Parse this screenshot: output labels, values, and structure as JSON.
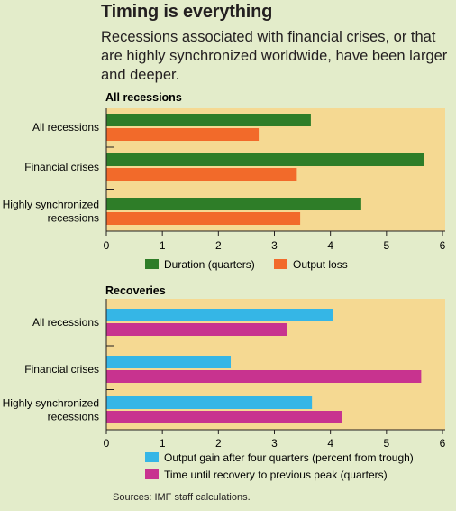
{
  "title": "Timing is everything",
  "subtitle": "Recessions associated with financial crises, or that are highly synchronized worldwide, have been larger and deeper.",
  "source": "Sources: IMF staff calculations.",
  "colors": {
    "background": "#e3ecca",
    "plot": "#f5d992",
    "duration": "#2e7d28",
    "output_loss": "#f26a2a",
    "output_gain": "#35b6e6",
    "time_recovery": "#c8338f"
  },
  "chart_data": [
    {
      "type": "bar",
      "orientation": "horizontal",
      "title": "All recessions",
      "categories": [
        [
          "All recessions"
        ],
        [
          "Financial crises"
        ],
        [
          "Highly synchronized",
          "recessions"
        ]
      ],
      "series": [
        {
          "name": "Duration (quarters)",
          "values": [
            3.65,
            5.67,
            4.55
          ],
          "color": "#2e7d28"
        },
        {
          "name": "Output loss",
          "values": [
            2.72,
            3.4,
            3.46
          ],
          "color": "#f26a2a"
        }
      ],
      "xlim": [
        0,
        6
      ],
      "ticks": [
        "0",
        "1",
        "2",
        "3",
        "4",
        "5",
        "6"
      ],
      "legend": "bottom"
    },
    {
      "type": "bar",
      "orientation": "horizontal",
      "title": "Recoveries",
      "categories": [
        [
          "All recessions"
        ],
        [
          "Financial crises"
        ],
        [
          "Highly synchronized",
          "recessions"
        ]
      ],
      "series": [
        {
          "name": "Output gain after four quarters (percent from trough)",
          "values": [
            4.05,
            2.22,
            3.67
          ],
          "color": "#35b6e6"
        },
        {
          "name": "Time until recovery to previous peak (quarters)",
          "values": [
            3.22,
            5.62,
            4.2
          ],
          "color": "#c8338f"
        }
      ],
      "xlim": [
        0,
        6
      ],
      "ticks": [
        "0",
        "1",
        "2",
        "3",
        "4",
        "5",
        "6"
      ],
      "legend": "bottom"
    }
  ]
}
